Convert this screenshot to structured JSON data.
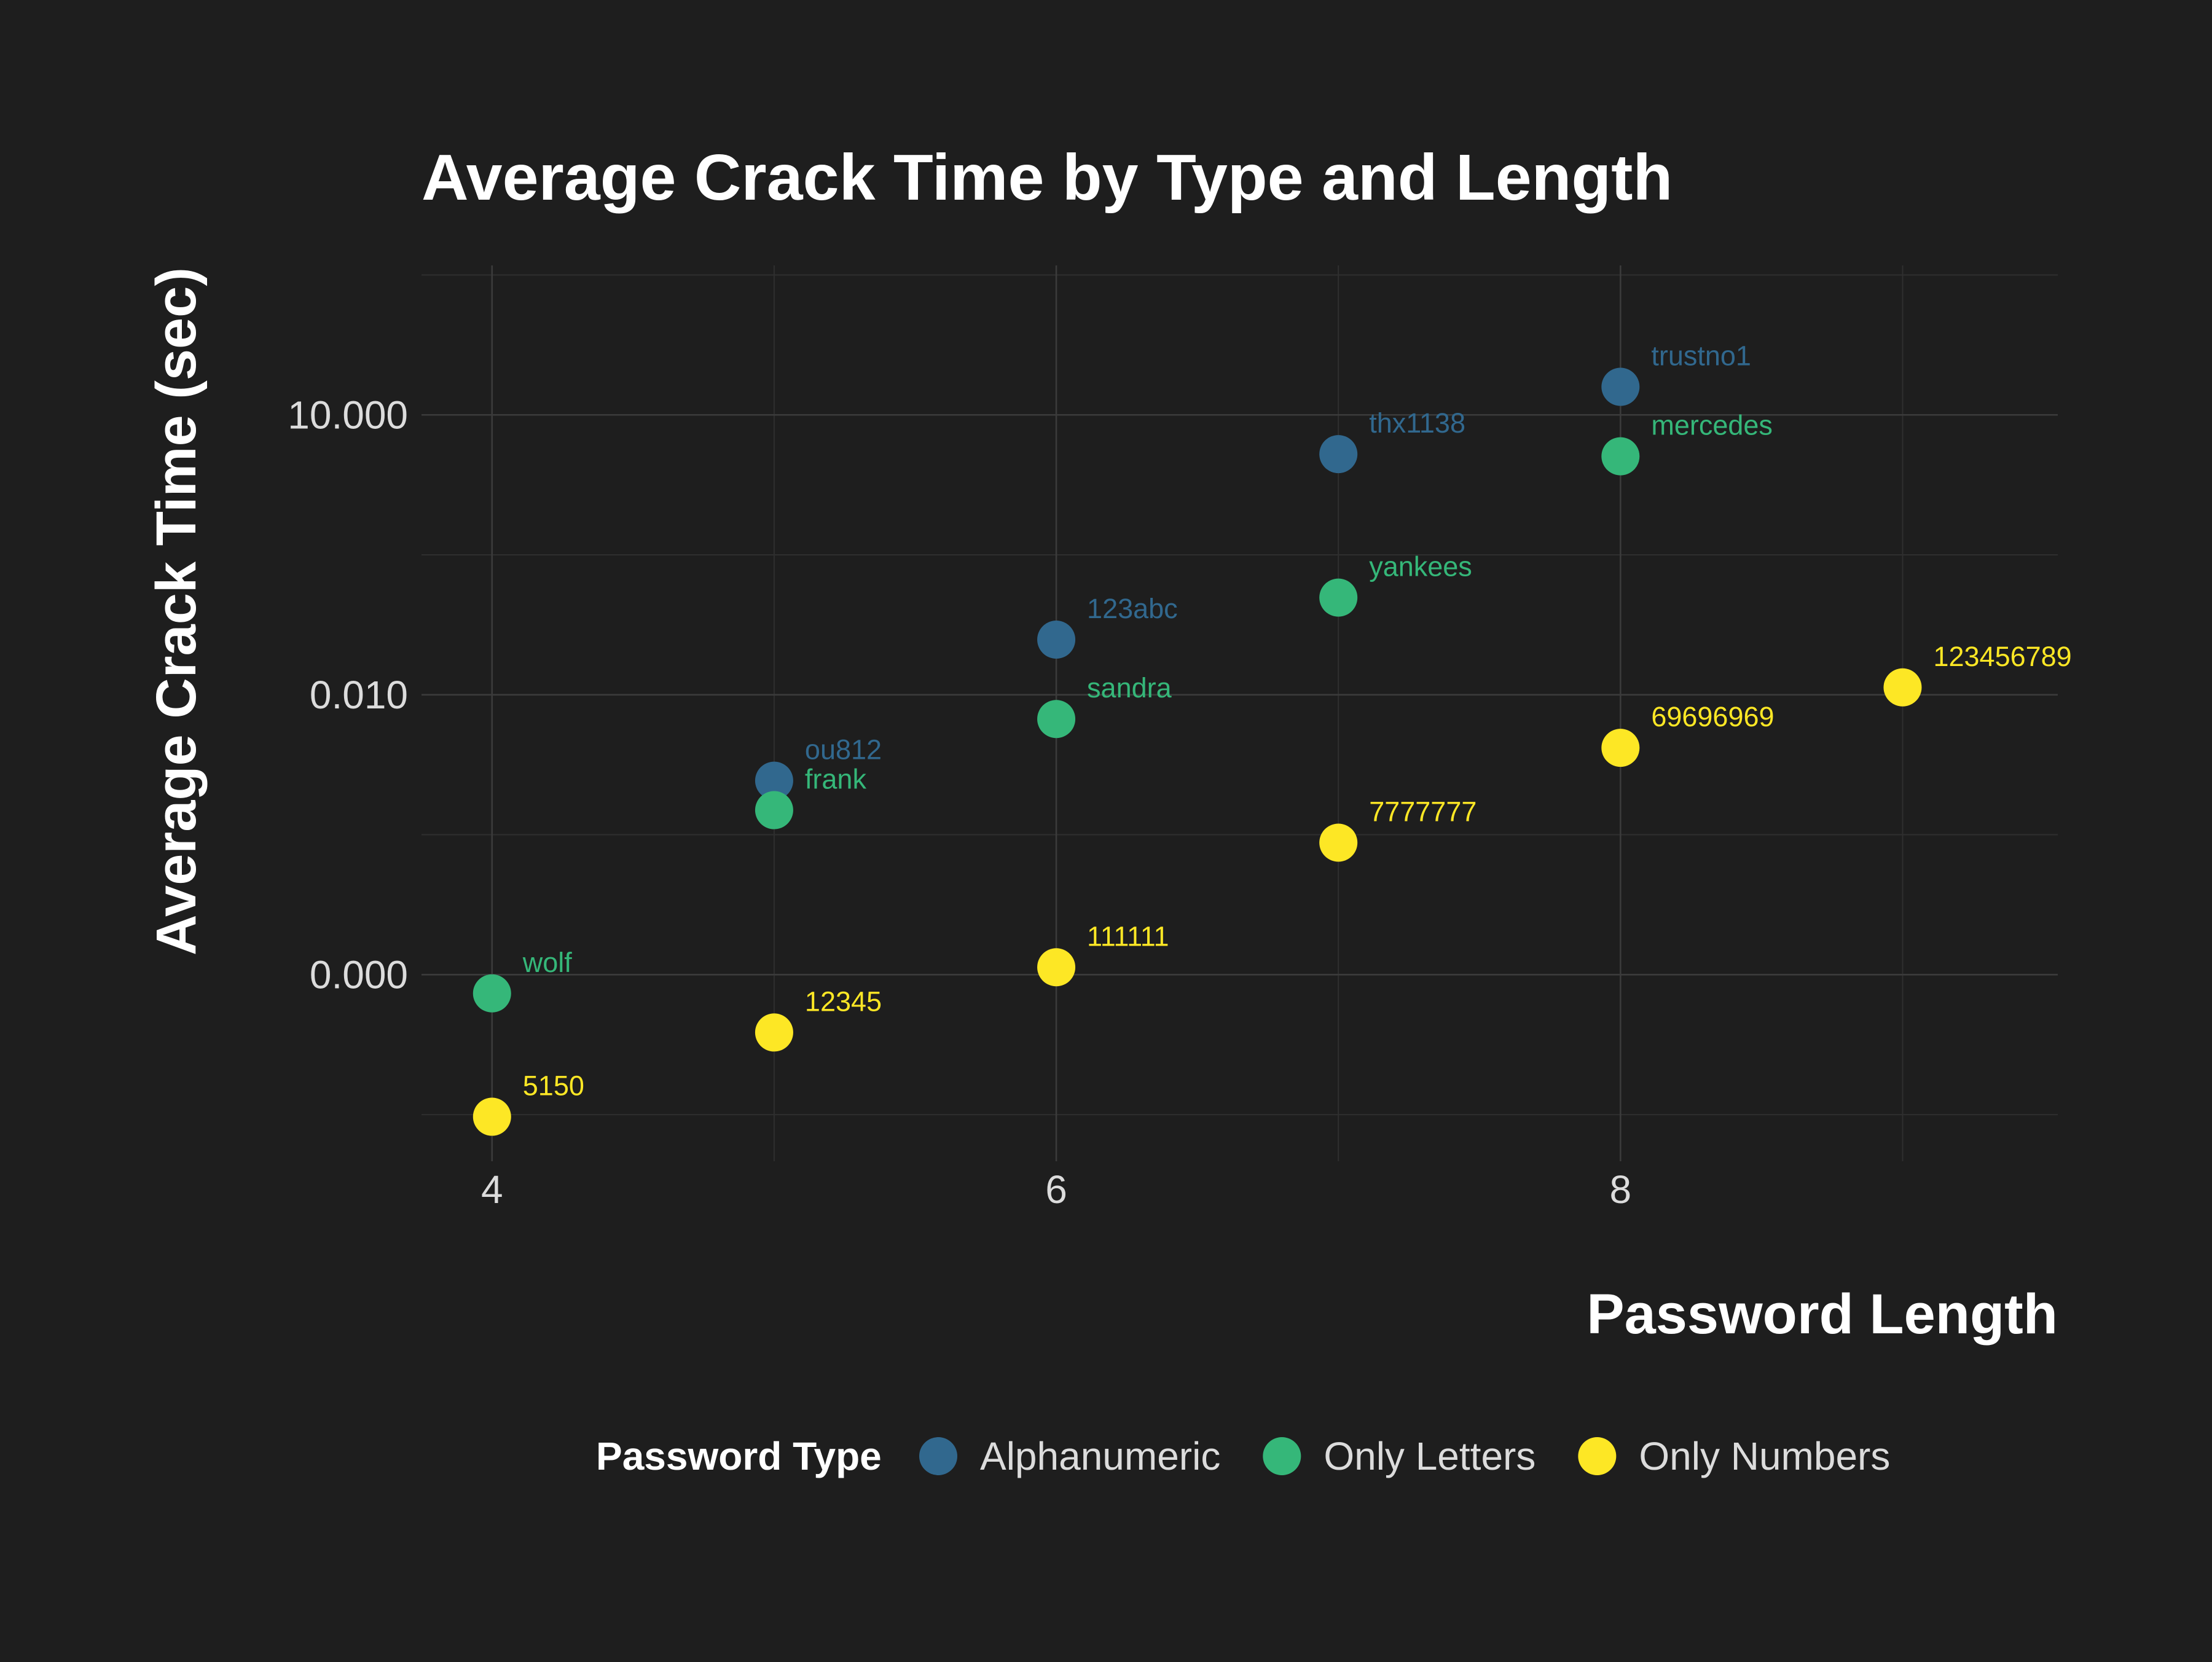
{
  "chart_data": {
    "type": "scatter",
    "title": "Average Crack Time by Type and Length",
    "xlabel": "Password Length",
    "ylabel": "Average Crack Time (sec)",
    "x_ticks": [
      4,
      6,
      8
    ],
    "x_tick_labels": [
      "4",
      "6",
      "8"
    ],
    "xlim": [
      3.75,
      9.55
    ],
    "y_scale": "log10",
    "y_ticks": [
      1e-05,
      0.01,
      10
    ],
    "y_tick_labels": [
      "0.000",
      "0.010",
      "10.000"
    ],
    "ylim": [
      1e-07,
      400
    ],
    "grid": true,
    "legend": {
      "title": "Password Type",
      "position": "bottom"
    },
    "series": [
      {
        "name": "Alphanumeric",
        "color": "#31688e",
        "points": [
          {
            "x": 5,
            "y": 0.0012,
            "label": "ou812"
          },
          {
            "x": 6,
            "y": 0.039,
            "label": "123abc"
          },
          {
            "x": 7,
            "y": 3.8,
            "label": "thx1138"
          },
          {
            "x": 8,
            "y": 20,
            "label": "trustno1"
          }
        ]
      },
      {
        "name": "Only Letters",
        "color": "#35b779",
        "points": [
          {
            "x": 4,
            "y": 6.3e-06,
            "label": "wolf"
          },
          {
            "x": 5,
            "y": 0.00058,
            "label": "frank"
          },
          {
            "x": 6,
            "y": 0.0055,
            "label": "sandra"
          },
          {
            "x": 7,
            "y": 0.11,
            "label": "yankees"
          },
          {
            "x": 8,
            "y": 3.6,
            "label": "mercedes"
          }
        ]
      },
      {
        "name": "Only Numbers",
        "color": "#fde725",
        "points": [
          {
            "x": 4,
            "y": 3e-07,
            "label": "5150"
          },
          {
            "x": 5,
            "y": 2.4e-06,
            "label": "12345"
          },
          {
            "x": 6,
            "y": 1.2e-05,
            "label": "111111"
          },
          {
            "x": 7,
            "y": 0.00026,
            "label": "7777777"
          },
          {
            "x": 8,
            "y": 0.0027,
            "label": "69696969"
          },
          {
            "x": 9,
            "y": 0.012,
            "label": "123456789"
          }
        ]
      }
    ]
  }
}
